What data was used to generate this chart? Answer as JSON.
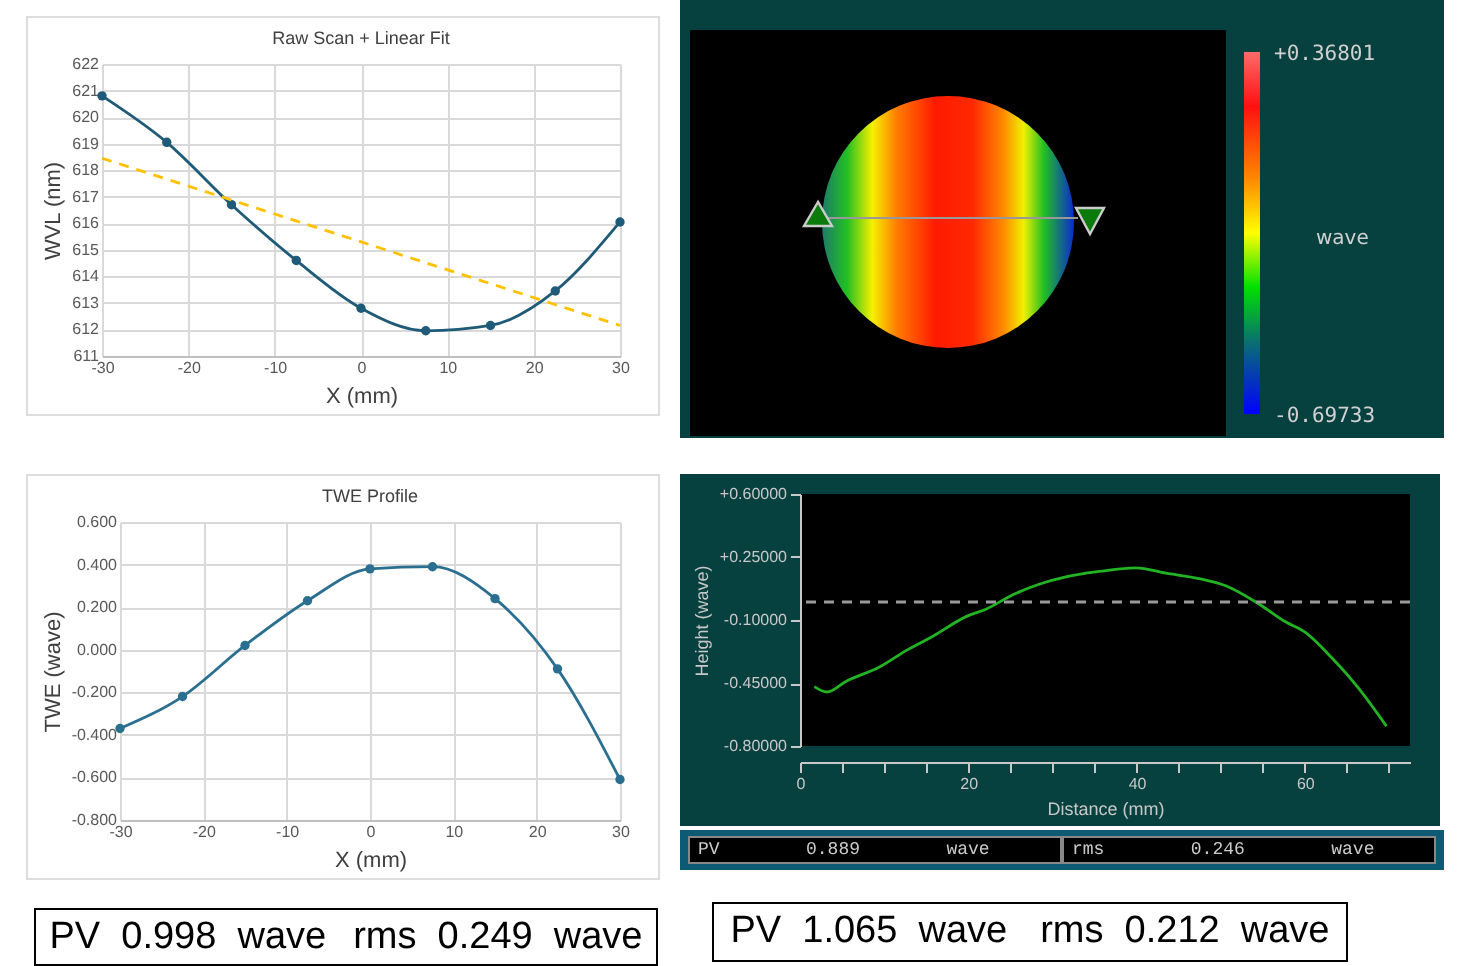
{
  "chart_data": [
    {
      "type": "line",
      "title": "Raw Scan + Linear Fit",
      "xlabel": "X (mm)",
      "ylabel": "WVL (nm)",
      "xlim": [
        -30,
        30
      ],
      "xticks": [
        -30,
        -20,
        -10,
        0,
        10,
        20,
        30
      ],
      "ylim": [
        611,
        622
      ],
      "yticks": [
        611,
        612,
        613,
        614,
        615,
        616,
        617,
        618,
        619,
        620,
        621,
        622
      ],
      "grid": true,
      "marker": "circle",
      "series": [
        {
          "color": "#1f5a78",
          "x": [
            -30,
            -22.5,
            -15,
            -7.5,
            0,
            7.5,
            15,
            22.5,
            30
          ],
          "values": [
            620.8,
            619.05,
            616.7,
            614.6,
            612.8,
            611.95,
            612.15,
            613.45,
            616.05
          ]
        },
        {
          "color": "#ffc000",
          "x": [
            -30,
            30
          ],
          "values": [
            618.45,
            612.15
          ],
          "line_style": "dashed",
          "marker": "none"
        }
      ]
    },
    {
      "type": "other",
      "clabel": "wave",
      "annotations": [
        "+0.36801",
        "-0.69733"
      ]
    },
    {
      "type": "line",
      "title": "TWE Profile",
      "xlabel": "X (mm)",
      "ylabel": "TWE (wave)",
      "xlim": [
        -30,
        30
      ],
      "xticks": [
        -30,
        -20,
        -10,
        0,
        10,
        20,
        30
      ],
      "ylim": [
        -0.8,
        0.6
      ],
      "yticks": [
        {
          "value": -0.8,
          "label": "-0.800"
        },
        {
          "value": -0.6,
          "label": "-0.600"
        },
        {
          "value": -0.4,
          "label": "-0.400"
        },
        {
          "value": -0.2,
          "label": "-0.200"
        },
        {
          "value": 0,
          "label": "0.000"
        },
        {
          "value": 0.2,
          "label": "0.200"
        },
        {
          "value": 0.4,
          "label": "0.400"
        },
        {
          "value": 0.6,
          "label": "0.600"
        }
      ],
      "grid": true,
      "marker": "circle",
      "series": [
        {
          "color": "#2a6f8f",
          "x": [
            -30,
            -22.5,
            -15,
            -7.5,
            0,
            7.5,
            15,
            22.5,
            30
          ],
          "values": [
            -0.37,
            -0.22,
            0.02,
            0.23,
            0.38,
            0.39,
            0.24,
            -0.09,
            -0.61
          ]
        }
      ],
      "annotations": [
        "PV 0.998 wave",
        "rms 0.249 wave"
      ]
    },
    {
      "type": "line",
      "xlabel": "Distance (mm)",
      "ylabel": "Height (wave)",
      "xlim": [
        0,
        72.5
      ],
      "xticks": [
        0,
        {
          "value": 5,
          "label": null
        },
        {
          "value": 10,
          "label": null
        },
        {
          "value": 15,
          "label": null
        },
        20,
        {
          "value": 25,
          "label": null
        },
        {
          "value": 30,
          "label": null
        },
        {
          "value": 35,
          "label": null
        },
        40,
        {
          "value": 45,
          "label": null
        },
        {
          "value": 50,
          "label": null
        },
        {
          "value": 55,
          "label": null
        },
        60,
        {
          "value": 65,
          "label": null
        },
        {
          "value": 70,
          "label": null
        }
      ],
      "ylim": [
        -0.8,
        0.6
      ],
      "yticks": [
        {
          "value": -0.8,
          "label": "-0.80000"
        },
        {
          "value": -0.45,
          "label": "-0.45000"
        },
        {
          "value": -0.1,
          "label": "-0.10000"
        },
        {
          "value": 0.25,
          "label": "+0.25000"
        },
        {
          "value": 0.6,
          "label": "+0.60000"
        }
      ],
      "series": [
        {
          "color": "#22b322",
          "x": [
            1.7,
            3.2,
            5.5,
            9.5,
            12.6,
            15.8,
            19.8,
            22.1,
            25.3,
            28.5,
            31.6,
            35.6,
            39.9,
            43.5,
            47.4,
            50.6,
            54.5,
            57.7,
            60.1,
            63.2,
            66.4,
            69.7
          ],
          "values": [
            -0.47,
            -0.5,
            -0.44,
            -0.36,
            -0.27,
            -0.19,
            -0.08,
            -0.04,
            0.04,
            0.1,
            0.14,
            0.17,
            0.19,
            0.16,
            0.13,
            0.09,
            -0.01,
            -0.11,
            -0.17,
            -0.31,
            -0.48,
            -0.69
          ]
        }
      ],
      "ref_lines": [
        {
          "axis": "y",
          "value": 0,
          "color": "#9a9a9a",
          "line_style": "dashed"
        }
      ],
      "annotations": [
        "PV 0.889 wave",
        "rms 0.246 wave",
        "PV 1.065 wave",
        "rms 0.212 wave"
      ]
    }
  ]
}
